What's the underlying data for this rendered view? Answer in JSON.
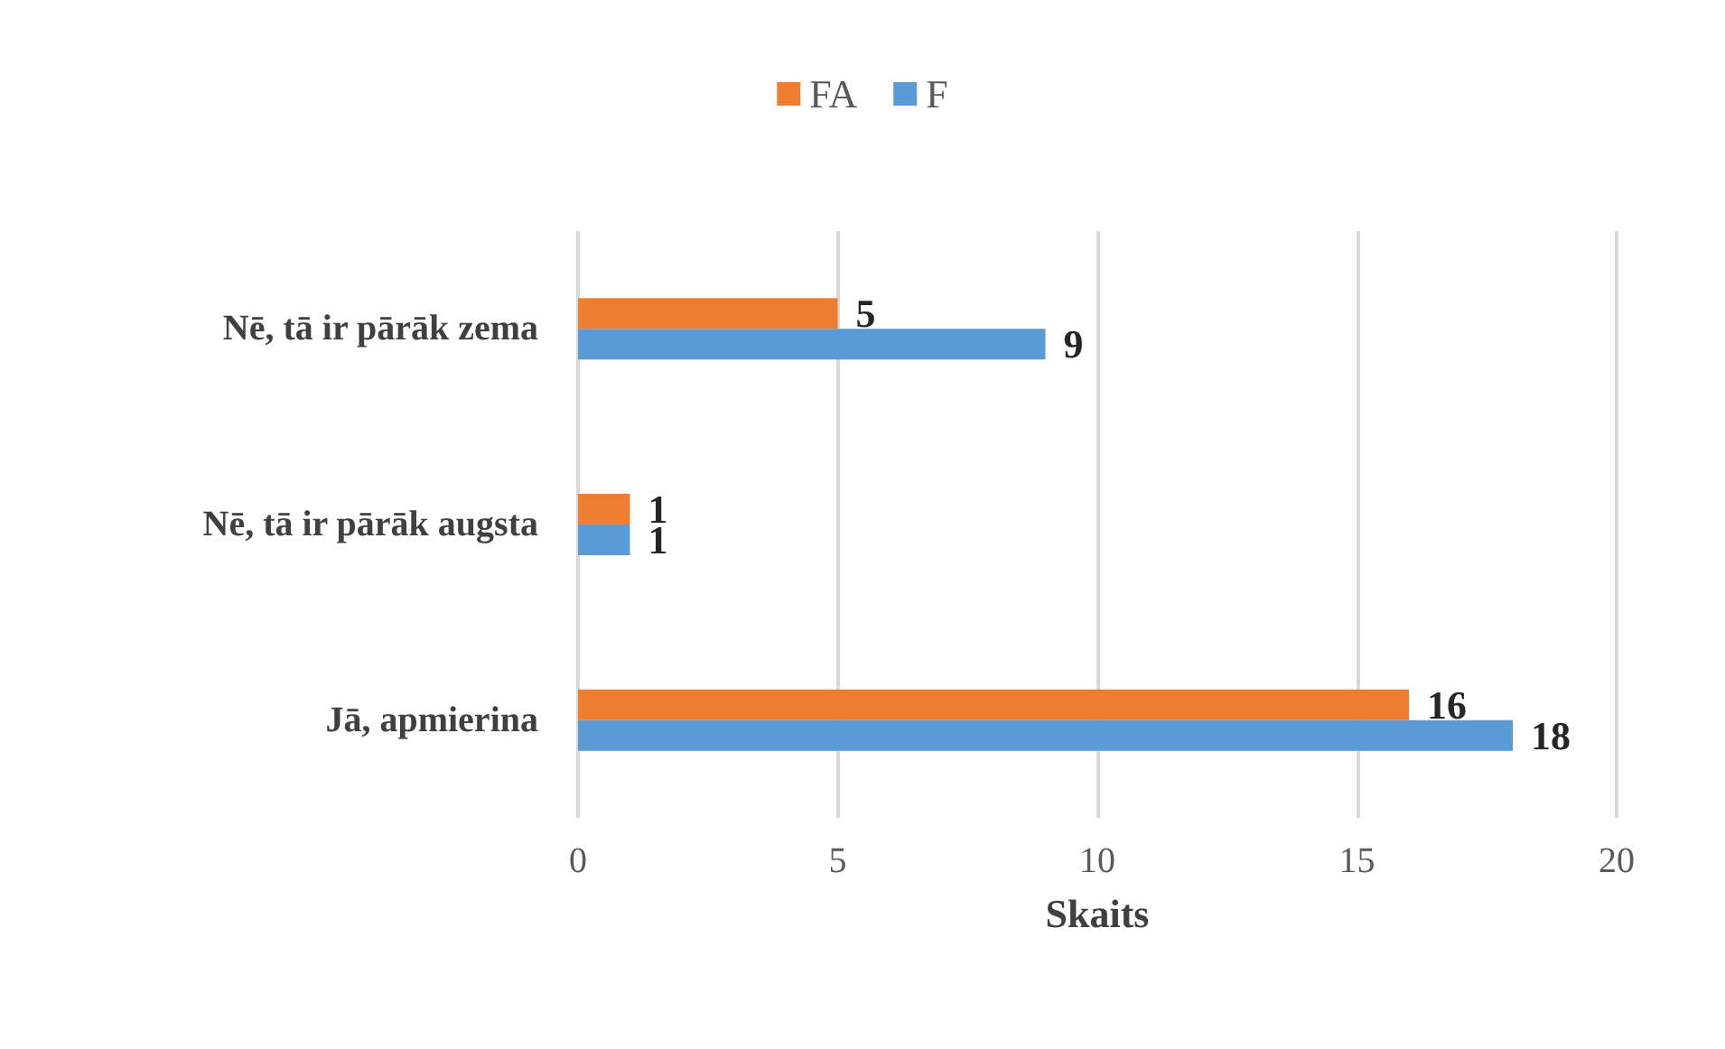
{
  "chart_data": {
    "type": "bar",
    "orientation": "horizontal",
    "xlabel": "Skaits",
    "categories": [
      "Nē, tā ir pārāk zema",
      "Nē, tā ir pārāk augsta",
      "Jā, apmierina"
    ],
    "series": [
      {
        "name": "FA",
        "color": "#ed7d31",
        "values": [
          5,
          1,
          16
        ]
      },
      {
        "name": "F",
        "color": "#5b9bd5",
        "values": [
          9,
          1,
          18
        ]
      }
    ],
    "xlim": [
      0,
      20
    ],
    "xticks": [
      0,
      5,
      10,
      15,
      20
    ],
    "grid": "x",
    "legend": "top",
    "data_labels": true
  }
}
